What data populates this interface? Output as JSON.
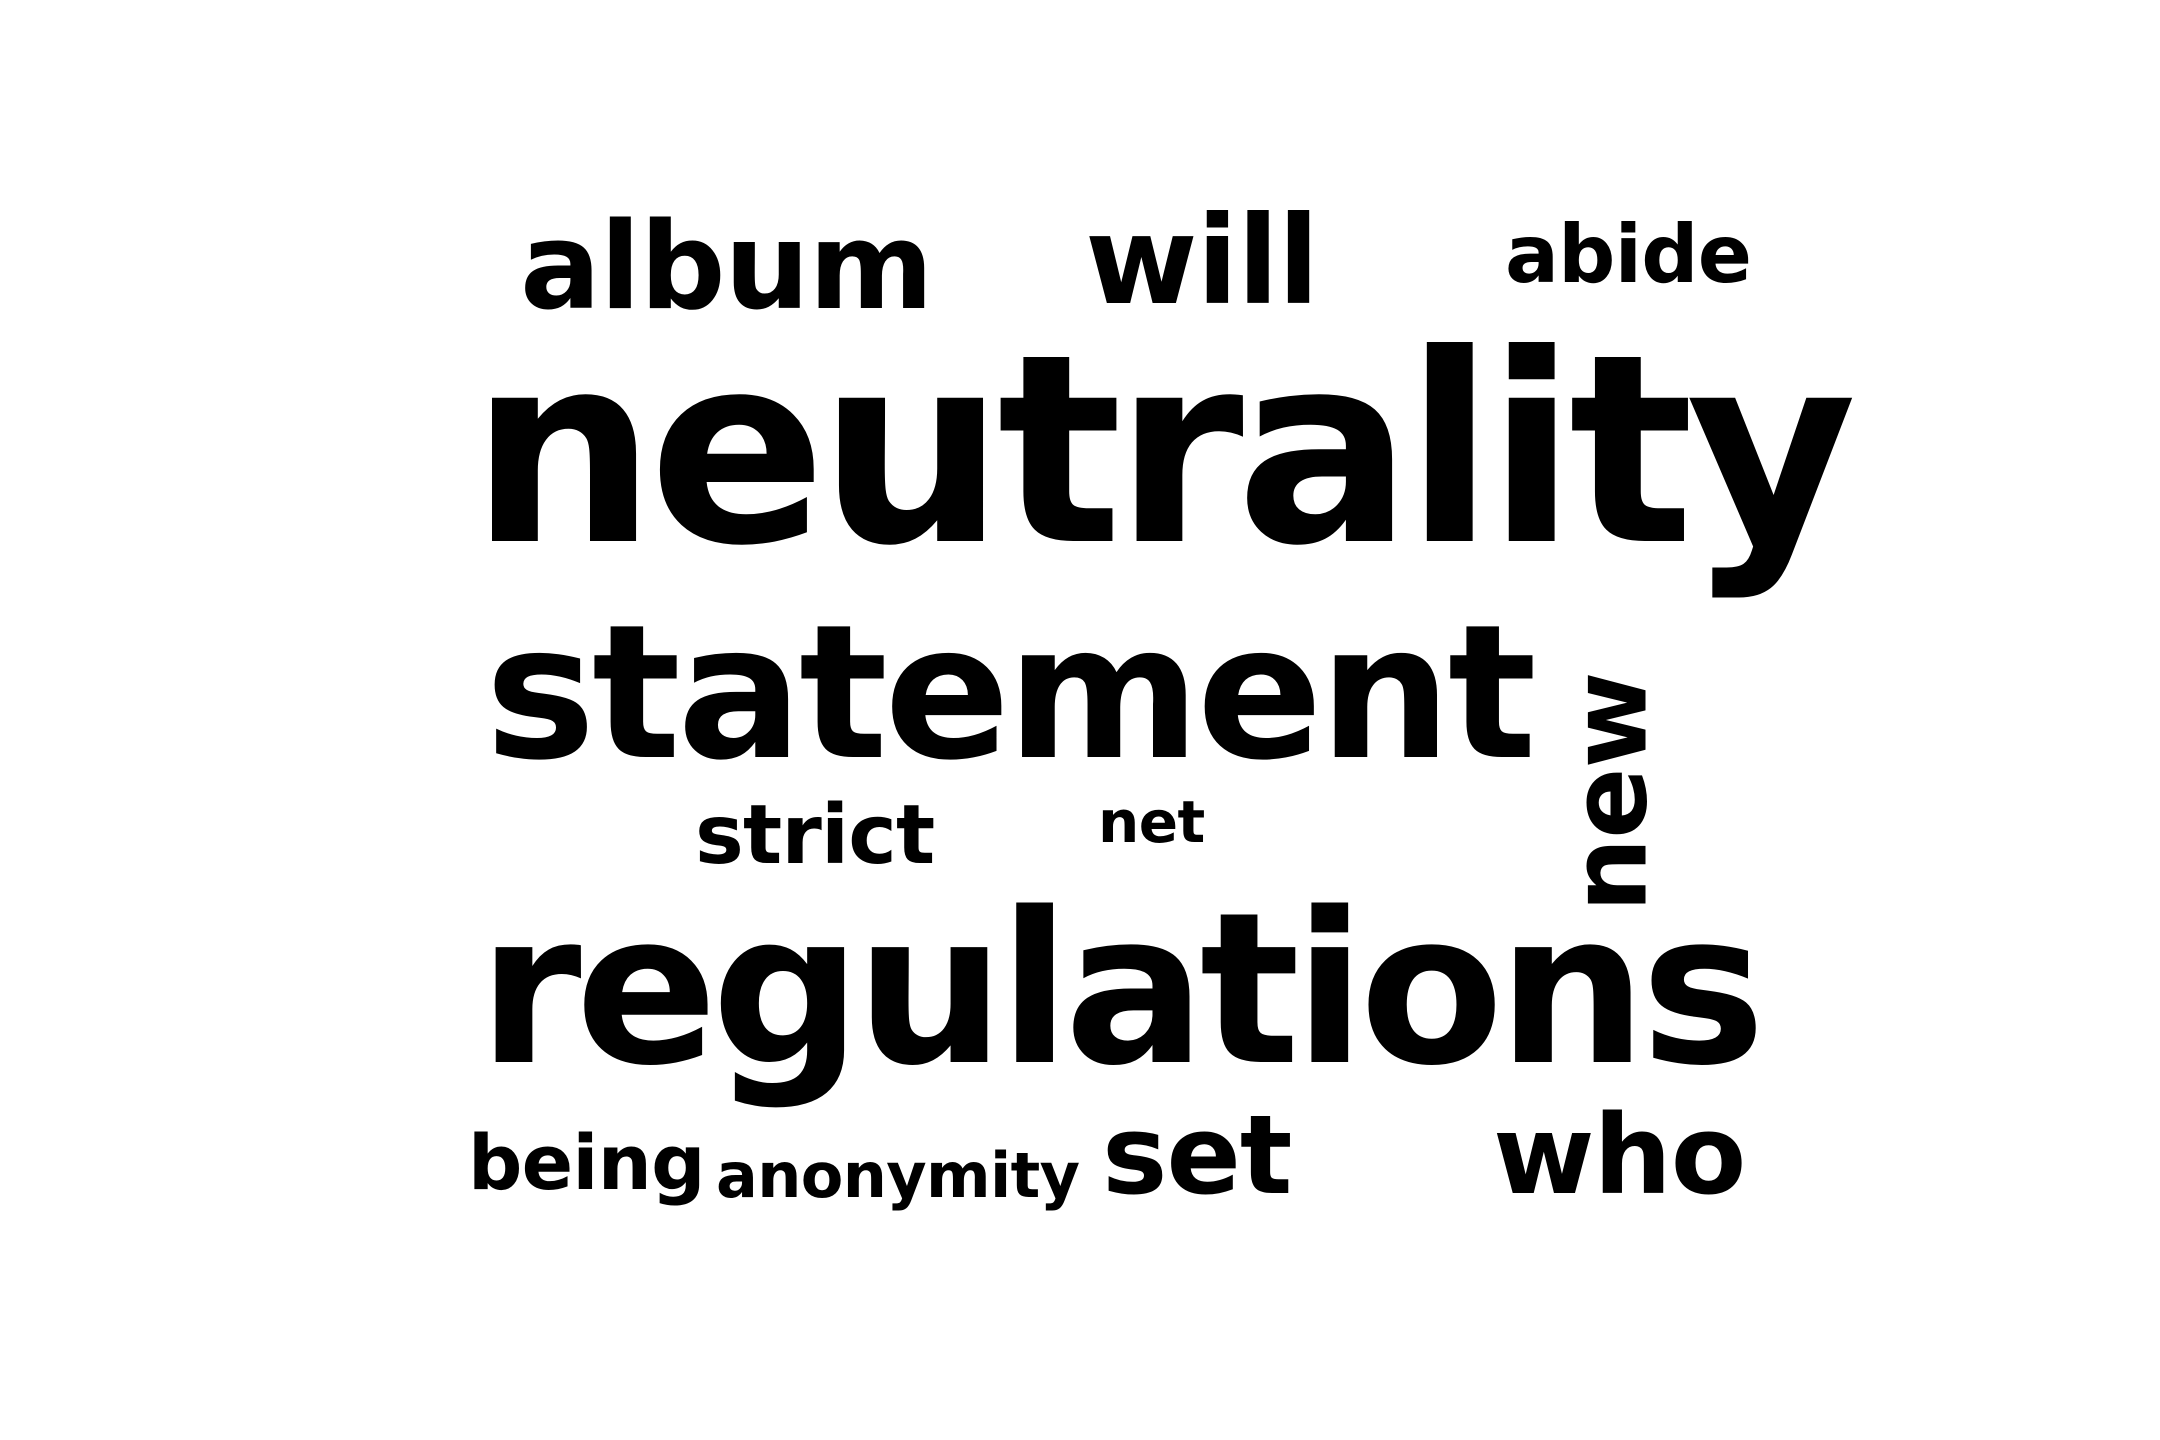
{
  "word_cloud": {
    "text_color": "#000000",
    "background_color": "#ffffff",
    "words": [
      {
        "text": "album"
      },
      {
        "text": "will"
      },
      {
        "text": "abide"
      },
      {
        "text": "neutrality"
      },
      {
        "text": "statement"
      },
      {
        "text": "new"
      },
      {
        "text": "strict"
      },
      {
        "text": "net"
      },
      {
        "text": "regulations"
      },
      {
        "text": "being"
      },
      {
        "text": "anonymity"
      },
      {
        "text": "set"
      },
      {
        "text": "who"
      }
    ]
  }
}
